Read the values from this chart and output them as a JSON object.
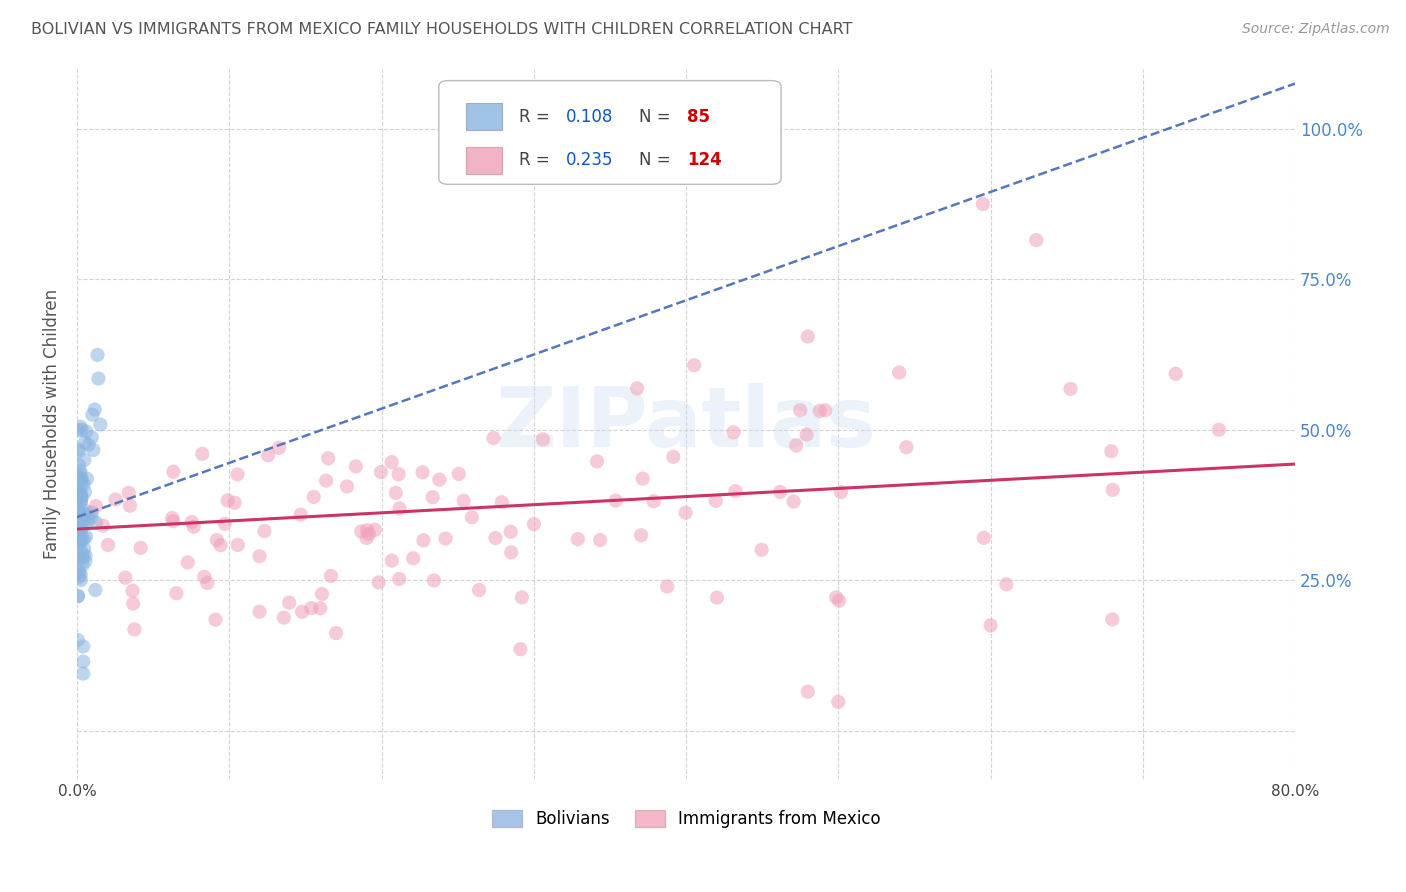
{
  "title": "BOLIVIAN VS IMMIGRANTS FROM MEXICO FAMILY HOUSEHOLDS WITH CHILDREN CORRELATION CHART",
  "source": "Source: ZipAtlas.com",
  "ylabel": "Family Households with Children",
  "bolivian_R": 0.108,
  "bolivian_N": 85,
  "mexico_R": 0.235,
  "mexico_N": 124,
  "blue_color": "#8ab4e0",
  "pink_color": "#f0a0b8",
  "blue_line_color": "#5577bb",
  "pink_line_color": "#cc3366",
  "watermark": "ZIPatlas",
  "legend_R_color": "#1155cc",
  "legend_N_color": "#cc0000",
  "background_color": "#ffffff",
  "grid_color": "#cccccc",
  "title_color": "#555555",
  "right_axis_color": "#4a86c8",
  "xlim": [
    0.0,
    0.8
  ],
  "ylim": [
    -0.08,
    1.1
  ],
  "ytick_positions": [
    0.0,
    0.25,
    0.5,
    0.75,
    1.0
  ],
  "right_ytick_positions": [
    0.25,
    0.5,
    0.75,
    1.0
  ],
  "right_ytick_labels": [
    "25.0%",
    "50.0%",
    "75.0%",
    "100.0%"
  ],
  "xtick_positions": [
    0.0,
    0.1,
    0.2,
    0.3,
    0.4,
    0.5,
    0.6,
    0.7,
    0.8
  ],
  "xtick_labels": [
    "0.0%",
    "",
    "",
    "",
    "",
    "",
    "",
    "",
    "80.0%"
  ]
}
